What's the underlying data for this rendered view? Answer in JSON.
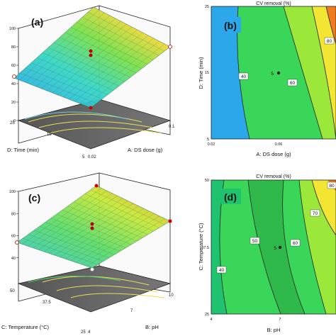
{
  "chart_data": [
    {
      "panel": "(a)",
      "type": "surface3d",
      "xlabel": "A: DS dose (g)",
      "ylabel": "D: Time (min)",
      "x_ticks": [
        "0.02",
        "0.1"
      ],
      "y_ticks": [
        "5",
        "15",
        "25"
      ],
      "z_ticks": [
        "0",
        "20",
        "40",
        "60",
        "80",
        "100"
      ],
      "zlim": [
        0,
        100
      ],
      "corner_values": {
        "low_low": 20,
        "high_low": 68,
        "low_high": 25,
        "high_high": 98
      },
      "center_value": 55
    },
    {
      "panel": "(b)",
      "type": "contour",
      "title": "CV removal (%)",
      "xlabel": "A: DS dose (g)",
      "ylabel": "D: Time (min)",
      "x_ticks": [
        "0.02",
        "0.06"
      ],
      "y_ticks": [
        "5",
        "15",
        "25"
      ],
      "levels": [
        "40",
        "60",
        "80"
      ],
      "center_marker": "5"
    },
    {
      "panel": "(c)",
      "type": "surface3d",
      "xlabel": "B: pH",
      "ylabel": "C: Temperature (°C)",
      "x_ticks": [
        "4",
        "7",
        "10"
      ],
      "y_ticks": [
        "25",
        "37.5",
        "50"
      ],
      "z_ticks": [
        "40",
        "60",
        "80",
        "100"
      ],
      "zlim": [
        20,
        100
      ],
      "corner_values": {
        "low_low": 38,
        "high_low": 60,
        "low_high": 40,
        "high_high": 95
      },
      "center_value": 55
    },
    {
      "panel": "(d)",
      "type": "contour",
      "title": "CV removal (%)",
      "xlabel": "B: pH",
      "ylabel": "C: Temperature (°C)",
      "x_ticks": [
        "4",
        "7"
      ],
      "y_ticks": [
        "25",
        "37.5",
        "50"
      ],
      "levels": [
        "40",
        "50",
        "60",
        "70",
        "80"
      ],
      "center_marker": "5"
    }
  ],
  "colors": {
    "blue": "#1f8fe6",
    "cyan": "#2fd0d8",
    "green": "#3ad65a",
    "lime": "#9be83a",
    "yellow": "#f2e632",
    "orange": "#f07a1e",
    "grid_dark": "#4a4a4a"
  }
}
